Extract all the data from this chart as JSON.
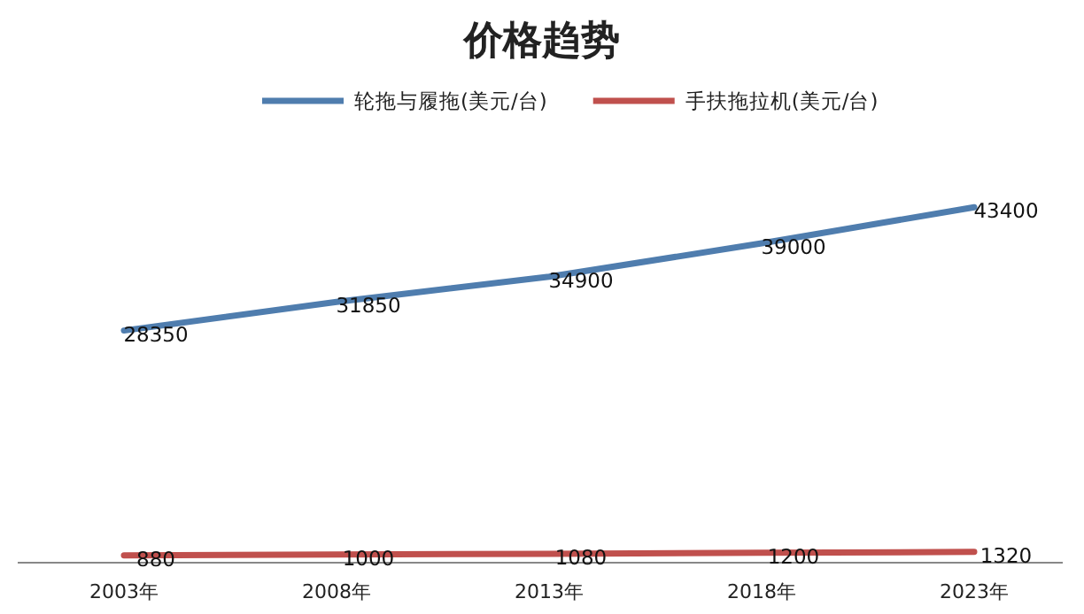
{
  "chart_data": {
    "type": "line",
    "title": "价格趋势",
    "categories": [
      "2003年",
      "2008年",
      "2013年",
      "2018年",
      "2023年"
    ],
    "series": [
      {
        "name": "轮拖与履拖(美元/台)",
        "color": "#4f7dae",
        "values": [
          28350,
          31850,
          34900,
          39000,
          43400
        ]
      },
      {
        "name": "手扶拖拉机(美元/台)",
        "color": "#c0504d",
        "values": [
          880,
          1000,
          1080,
          1200,
          1320
        ]
      }
    ],
    "data_labels": true,
    "legend": "top"
  }
}
